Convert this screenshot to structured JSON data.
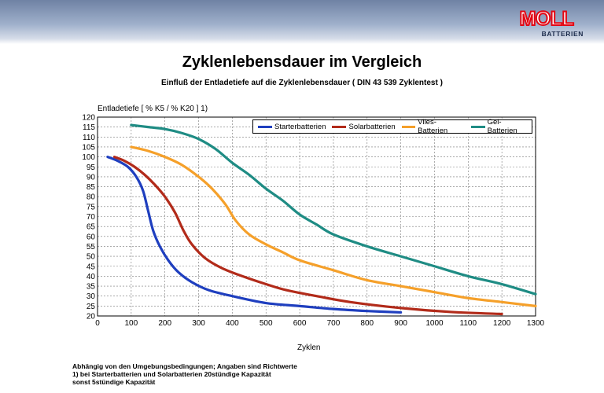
{
  "brand": {
    "logo_text": "MOLL",
    "logo_subtext": "BATTERIEN"
  },
  "colors": {
    "header_band": "#8a9bbb",
    "logo_red": "#e30613",
    "starter": "#1f3fbf",
    "solar": "#b22b1a",
    "vlies": "#f5a02a",
    "gel": "#1f8c84"
  },
  "notes": {
    "line1": "Abhängig von den Umgebungsbedingungen;     Angaben sind Richtwerte",
    "line2": "1) bei Starterbatterien und Solarbatterien 20stündige Kapazität",
    "line3": "sonst 5stündige Kapazität"
  },
  "chart_data": {
    "type": "line",
    "title": "Zyklenlebensdauer im Vergleich",
    "subtitle": "Einfluß der Entladetiefe auf die Zyklenlebensdauer ( DIN 43 539 Zyklentest )",
    "xlabel": "Zyklen",
    "ylabel": "Entladetiefe [ % K5 / % K20 ] 1)",
    "xlim": [
      0,
      1300
    ],
    "ylim": [
      20,
      120
    ],
    "x_ticks": [
      0,
      100,
      200,
      300,
      400,
      500,
      600,
      700,
      800,
      900,
      1000,
      1100,
      1200,
      1300
    ],
    "y_ticks": [
      20,
      25,
      30,
      35,
      40,
      45,
      50,
      55,
      60,
      65,
      70,
      75,
      80,
      85,
      90,
      95,
      100,
      105,
      110,
      115,
      120
    ],
    "grid": true,
    "legend_position": "top-right",
    "series": [
      {
        "name": "Starterbatterien",
        "color": "#1f3fbf",
        "points": [
          [
            30,
            100
          ],
          [
            60,
            98
          ],
          [
            90,
            95
          ],
          [
            115,
            90
          ],
          [
            135,
            83
          ],
          [
            150,
            73
          ],
          [
            165,
            63
          ],
          [
            185,
            55
          ],
          [
            210,
            48
          ],
          [
            240,
            42
          ],
          [
            280,
            37
          ],
          [
            330,
            33
          ],
          [
            400,
            30
          ],
          [
            500,
            26.5
          ],
          [
            600,
            25
          ],
          [
            700,
            23.5
          ],
          [
            800,
            22.5
          ],
          [
            900,
            21.8
          ]
        ]
      },
      {
        "name": "Solarbatterien",
        "color": "#b22b1a",
        "points": [
          [
            50,
            100
          ],
          [
            80,
            98
          ],
          [
            110,
            95
          ],
          [
            140,
            91
          ],
          [
            170,
            86
          ],
          [
            200,
            80
          ],
          [
            230,
            72
          ],
          [
            255,
            63
          ],
          [
            280,
            56
          ],
          [
            320,
            49
          ],
          [
            370,
            44
          ],
          [
            430,
            40
          ],
          [
            500,
            36
          ],
          [
            560,
            33
          ],
          [
            650,
            30
          ],
          [
            750,
            27
          ],
          [
            900,
            24
          ],
          [
            1050,
            22
          ],
          [
            1200,
            21
          ]
        ]
      },
      {
        "name": "Vlies-Batterien",
        "color": "#f5a02a",
        "points": [
          [
            100,
            105
          ],
          [
            150,
            103
          ],
          [
            200,
            100
          ],
          [
            250,
            96
          ],
          [
            300,
            90
          ],
          [
            340,
            84
          ],
          [
            380,
            76
          ],
          [
            410,
            68
          ],
          [
            450,
            61
          ],
          [
            500,
            56
          ],
          [
            550,
            52
          ],
          [
            600,
            48
          ],
          [
            700,
            43
          ],
          [
            800,
            38
          ],
          [
            900,
            35
          ],
          [
            1000,
            32
          ],
          [
            1100,
            29
          ],
          [
            1200,
            27
          ],
          [
            1300,
            25
          ]
        ]
      },
      {
        "name": "Gel-Batterien",
        "color": "#1f8c84",
        "points": [
          [
            100,
            116
          ],
          [
            150,
            115
          ],
          [
            200,
            114
          ],
          [
            250,
            112
          ],
          [
            300,
            109
          ],
          [
            350,
            104
          ],
          [
            400,
            97
          ],
          [
            450,
            91
          ],
          [
            500,
            84
          ],
          [
            550,
            78
          ],
          [
            600,
            71
          ],
          [
            650,
            66
          ],
          [
            700,
            61
          ],
          [
            800,
            55
          ],
          [
            900,
            50
          ],
          [
            1000,
            45
          ],
          [
            1100,
            40
          ],
          [
            1200,
            36
          ],
          [
            1300,
            31
          ]
        ]
      }
    ]
  }
}
